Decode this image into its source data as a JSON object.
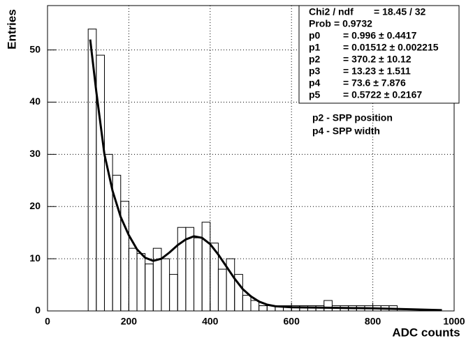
{
  "chart_data": {
    "type": "histogram",
    "xlabel": "ADC counts",
    "ylabel": "Entries",
    "xlim": [
      0,
      1000
    ],
    "ylim": [
      0,
      58.5
    ],
    "xticks": [
      0,
      200,
      400,
      600,
      800,
      1000
    ],
    "yticks": [
      0,
      10,
      20,
      30,
      40,
      50
    ],
    "grid": true,
    "color": "#000000",
    "bins": [
      100,
      120,
      140,
      160,
      180,
      200,
      220,
      240,
      260,
      280,
      300,
      320,
      340,
      360,
      380,
      400,
      420,
      440,
      460,
      480,
      500,
      520,
      540,
      560,
      580,
      600,
      620,
      640,
      660,
      680,
      700,
      720,
      740,
      760,
      780,
      800,
      820,
      840,
      860,
      880,
      900,
      920,
      940,
      960,
      980
    ],
    "values": [
      54,
      49,
      30,
      26,
      21,
      12,
      11,
      9,
      12,
      10,
      7,
      16,
      16,
      14,
      17,
      13,
      8,
      10,
      7,
      3,
      2,
      1,
      1,
      1,
      1,
      1,
      1,
      1,
      1,
      2,
      1,
      1,
      1,
      1,
      1,
      1,
      1,
      1,
      0,
      0,
      0,
      0,
      0,
      0
    ],
    "fit": {
      "x": [
        105,
        120,
        140,
        160,
        180,
        200,
        220,
        240,
        260,
        280,
        300,
        320,
        340,
        360,
        380,
        400,
        420,
        440,
        460,
        480,
        500,
        520,
        540,
        560,
        600,
        700,
        800,
        900,
        970
      ],
      "values": [
        52,
        42,
        30,
        23,
        18,
        14.5,
        11.8,
        10.2,
        9.6,
        10,
        11.2,
        12.6,
        13.7,
        14.3,
        14,
        12.8,
        10.8,
        8.5,
        6.2,
        4.2,
        2.8,
        1.8,
        1.2,
        0.9,
        0.7,
        0.6,
        0.5,
        0.3,
        0.15
      ],
      "color": "#000000"
    },
    "stats": [
      {
        "label": "Chi2 / ndf",
        "value": "= 18.45 / 32"
      },
      {
        "label": "Prob",
        "value": "= 0.9732"
      },
      {
        "label": "p0",
        "value": "= 0.996 ± 0.4417"
      },
      {
        "label": "p1",
        "value": "= 0.01512 ± 0.002215"
      },
      {
        "label": "p2",
        "value": "= 370.2 ± 10.12"
      },
      {
        "label": "p3",
        "value": "= 13.23 ± 1.511"
      },
      {
        "label": "p4",
        "value": "= 73.6 ± 7.876"
      },
      {
        "label": "p5",
        "value": "= 0.5722 ± 0.2167"
      }
    ],
    "annotations": [
      "p2 - SPP position",
      "p4 - SPP width"
    ]
  }
}
